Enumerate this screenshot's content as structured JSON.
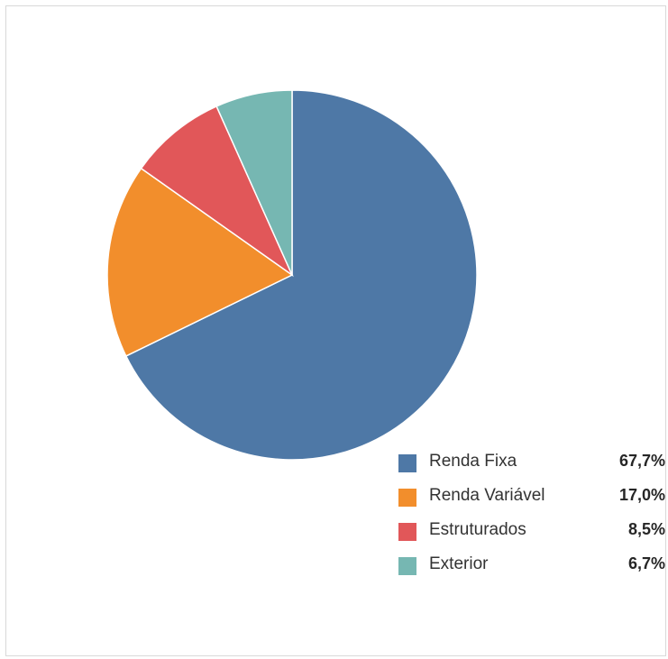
{
  "chart_data": {
    "type": "pie",
    "categories": [
      "Renda Fixa",
      "Renda Variável",
      "Estruturados",
      "Exterior"
    ],
    "values": [
      67.7,
      17.0,
      8.5,
      6.7
    ],
    "labels": [
      "67,7%",
      "17,0%",
      "8,5%",
      "6,7%"
    ],
    "colors": [
      "#4e78a6",
      "#f28e2c",
      "#e15759",
      "#76b7b2"
    ],
    "legend_position": "bottom-right",
    "start": "12 o'clock",
    "direction": "clockwise"
  },
  "legend": [
    {
      "label": "Renda Fixa",
      "pct": "67,7%"
    },
    {
      "label": "Renda Variável",
      "pct": "17,0%"
    },
    {
      "label": "Estruturados",
      "pct": "8,5%"
    },
    {
      "label": "Exterior",
      "pct": "6,7%"
    }
  ]
}
